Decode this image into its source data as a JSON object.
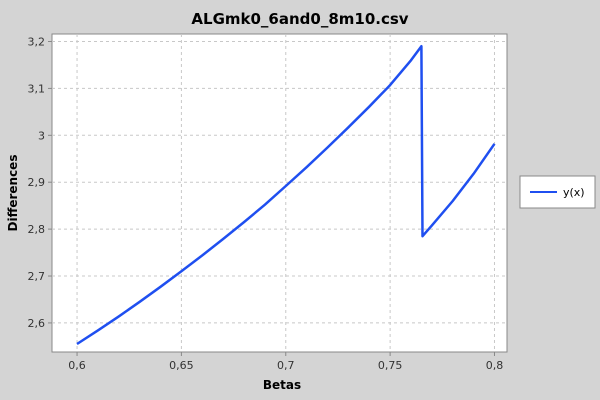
{
  "chart_data": {
    "type": "line",
    "title": "ALGmk0_6and0_8m10.csv",
    "xlabel": "Betas",
    "ylabel": "Differences",
    "xlim": [
      0.588,
      0.806
    ],
    "ylim": [
      2.538,
      3.216
    ],
    "x_ticks": [
      0.6,
      0.65,
      0.7,
      0.75,
      0.8
    ],
    "x_tick_labels": [
      "0,6",
      "0,65",
      "0,7",
      "0,75",
      "0,8"
    ],
    "y_ticks": [
      2.6,
      2.7,
      2.8,
      2.9,
      3.0,
      3.1,
      3.2
    ],
    "y_tick_labels": [
      "2,6",
      "2,7",
      "2,8",
      "2,9",
      "3",
      "3,1",
      "3,2"
    ],
    "grid": true,
    "legend_position": "right",
    "series": [
      {
        "name": "y(x)",
        "color": "#1f4ff0",
        "x": [
          0.6,
          0.61,
          0.62,
          0.63,
          0.64,
          0.65,
          0.66,
          0.67,
          0.68,
          0.69,
          0.7,
          0.71,
          0.72,
          0.73,
          0.74,
          0.75,
          0.76,
          0.765,
          0.7655,
          0.77,
          0.78,
          0.79,
          0.8
        ],
        "y": [
          2.555,
          2.584,
          2.614,
          2.645,
          2.677,
          2.71,
          2.744,
          2.779,
          2.815,
          2.852,
          2.892,
          2.932,
          2.974,
          3.017,
          3.061,
          3.107,
          3.16,
          3.19,
          2.785,
          2.808,
          2.86,
          2.918,
          2.982
        ]
      }
    ]
  }
}
